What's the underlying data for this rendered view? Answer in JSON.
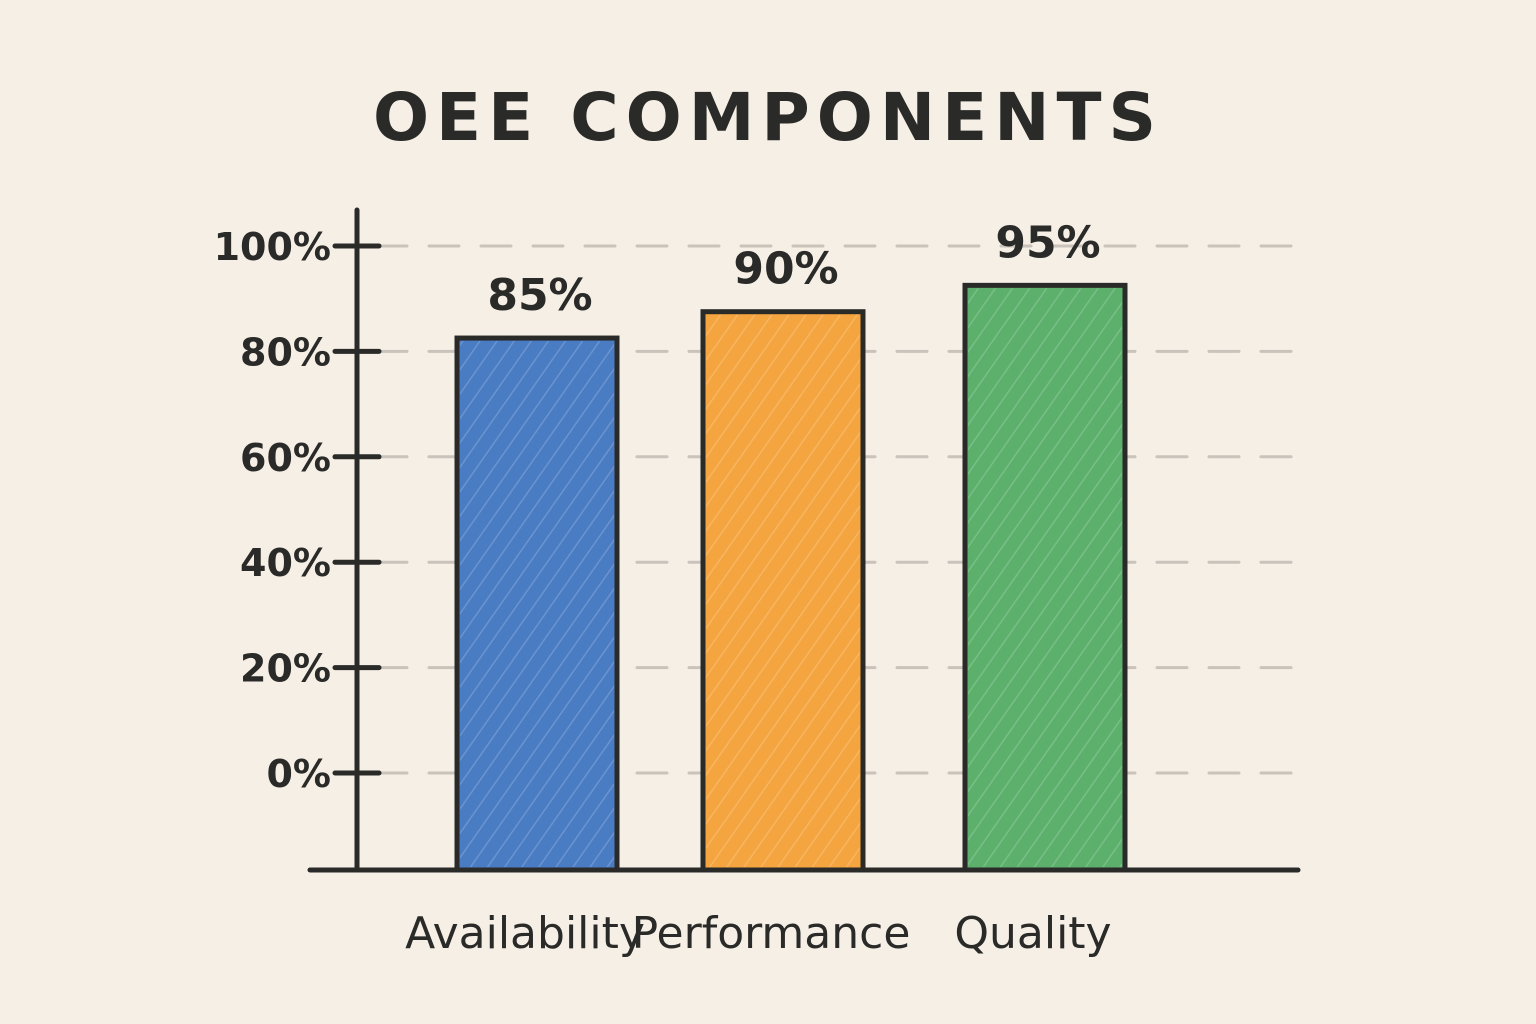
{
  "chart_data": {
    "type": "bar",
    "title": "OEE COMPONENTS",
    "xlabel": "",
    "ylabel": "",
    "categories": [
      "Availability",
      "Performance",
      "Quality"
    ],
    "values": [
      85,
      90,
      95
    ],
    "value_labels": [
      "85%",
      "90%",
      "95%"
    ],
    "bar_colors": [
      "#4a7cc4",
      "#f5a53f",
      "#5cb06c"
    ],
    "ylim": [
      0,
      100
    ],
    "yticks": [
      0,
      20,
      40,
      60,
      80,
      100
    ],
    "ytick_labels": [
      "0%",
      "20%",
      "40%",
      "60%",
      "80%",
      "100%"
    ],
    "grid": true,
    "grid_style": "dashed",
    "legend": "none"
  }
}
